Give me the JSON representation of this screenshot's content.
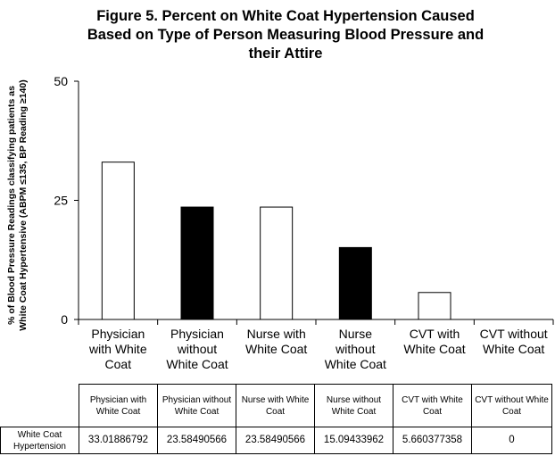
{
  "title_lines": [
    "Figure 5. Percent on White Coat Hypertension Caused",
    "Based on Type of Person Measuring Blood Pressure and",
    "their Attire"
  ],
  "ylabel_lines": [
    "% of Blood Pressure Readings classifying patients as",
    "White Coat Hypertensive (ABPM ≤135, BP Reading ≥140)"
  ],
  "colors": {
    "hollow": "#ffffff",
    "solid": "#000000",
    "stroke": "#000000"
  },
  "chart_data": {
    "type": "bar",
    "title": "Figure 5. Percent on White Coat Hypertension Caused Based on Type of Person Measuring Blood Pressure and their Attire",
    "xlabel": "",
    "ylabel": "% of Blood Pressure Readings classifying patients as White Coat Hypertensive (ABPM ≤135, BP Reading ≥140)",
    "ylim": [
      0,
      50
    ],
    "yticks": [
      0,
      25,
      50
    ],
    "categories": [
      "Physician with White Coat",
      "Physician without White Coat",
      "Nurse with White Coat",
      "Nurse without White Coat",
      "CVT with White Coat",
      "CVT without White Coat"
    ],
    "category_label_lines": [
      [
        "Physician",
        "with White",
        "Coat"
      ],
      [
        "Physician",
        "without",
        "White Coat"
      ],
      [
        "Nurse with",
        "White Coat"
      ],
      [
        "Nurse",
        "without",
        "White Coat"
      ],
      [
        "CVT with",
        "White Coat"
      ],
      [
        "CVT without",
        "White Coat"
      ]
    ],
    "series": [
      {
        "name": "White Coat Hypertension",
        "values": [
          33.01886792,
          23.58490566,
          23.58490566,
          15.09433962,
          5.660377358,
          0
        ],
        "fills": [
          "hollow",
          "solid",
          "hollow",
          "solid",
          "hollow",
          "solid"
        ]
      }
    ]
  },
  "table": {
    "headers": [
      "Physician with White Coat",
      "Physician without White Coat",
      "Nurse with White Coat",
      "Nurse without White Coat",
      "CVT with White Coat",
      "CVT without White Coat"
    ],
    "row_label": "White Coat Hypertension",
    "values": [
      "33.01886792",
      "23.58490566",
      "23.58490566",
      "15.09433962",
      "5.660377358",
      "0"
    ]
  }
}
